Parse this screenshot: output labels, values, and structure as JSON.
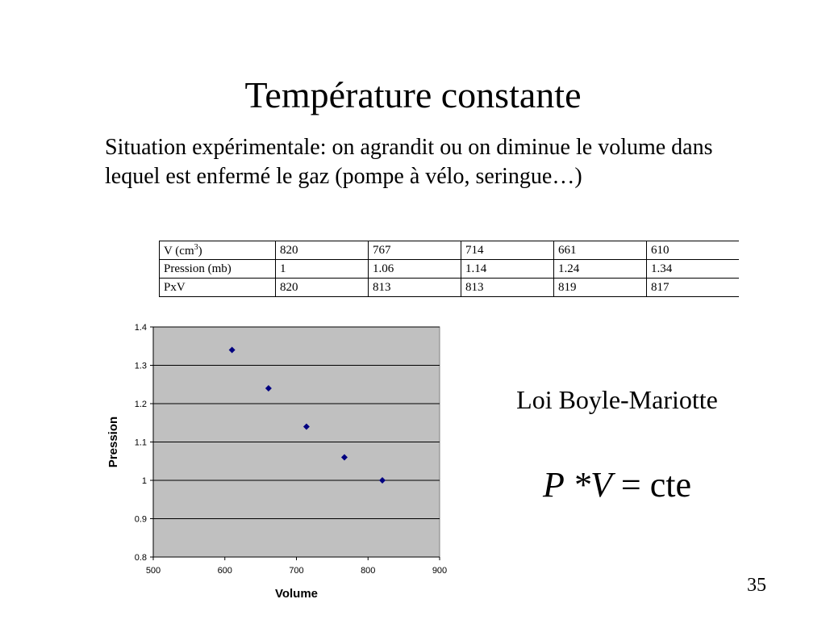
{
  "slide": {
    "title": "Température constante",
    "body": "Situation expérimentale: on agrandit ou on diminue le volume dans lequel est enfermé le gaz (pompe à vélo, seringue…)",
    "page_number": "35"
  },
  "table": {
    "row_labels": {
      "volume_main": "V (cm",
      "volume_sup": "3",
      "volume_close": ")",
      "pressure": "Pression (mb)",
      "product": "PxV"
    },
    "volume": [
      "820",
      "767",
      "714",
      "661",
      "610"
    ],
    "pressure": [
      "1",
      "1.06",
      "1.14",
      "1.24",
      "1.34"
    ],
    "product": [
      "820",
      "813",
      "813",
      "819",
      "817"
    ]
  },
  "law": {
    "title": "Loi Boyle-Mariotte",
    "formula_vars": "P *V",
    "formula_rest": " = cte"
  },
  "chart_data": {
    "type": "scatter",
    "x": [
      610,
      661,
      714,
      767,
      820
    ],
    "y": [
      1.34,
      1.24,
      1.14,
      1.06,
      1
    ],
    "xlabel": "Volume",
    "ylabel": "Pression",
    "xlim": [
      500,
      900
    ],
    "ylim": [
      0.8,
      1.4
    ],
    "x_ticks": [
      "500",
      "600",
      "700",
      "800",
      "900"
    ],
    "y_ticks": [
      "0.8",
      "0.9",
      "1",
      "1.1",
      "1.2",
      "1.3",
      "1.4"
    ],
    "grid": "horizontal",
    "colors": {
      "plot_background": "#c0c0c0",
      "marker": "#000080",
      "grid": "#000000"
    }
  }
}
